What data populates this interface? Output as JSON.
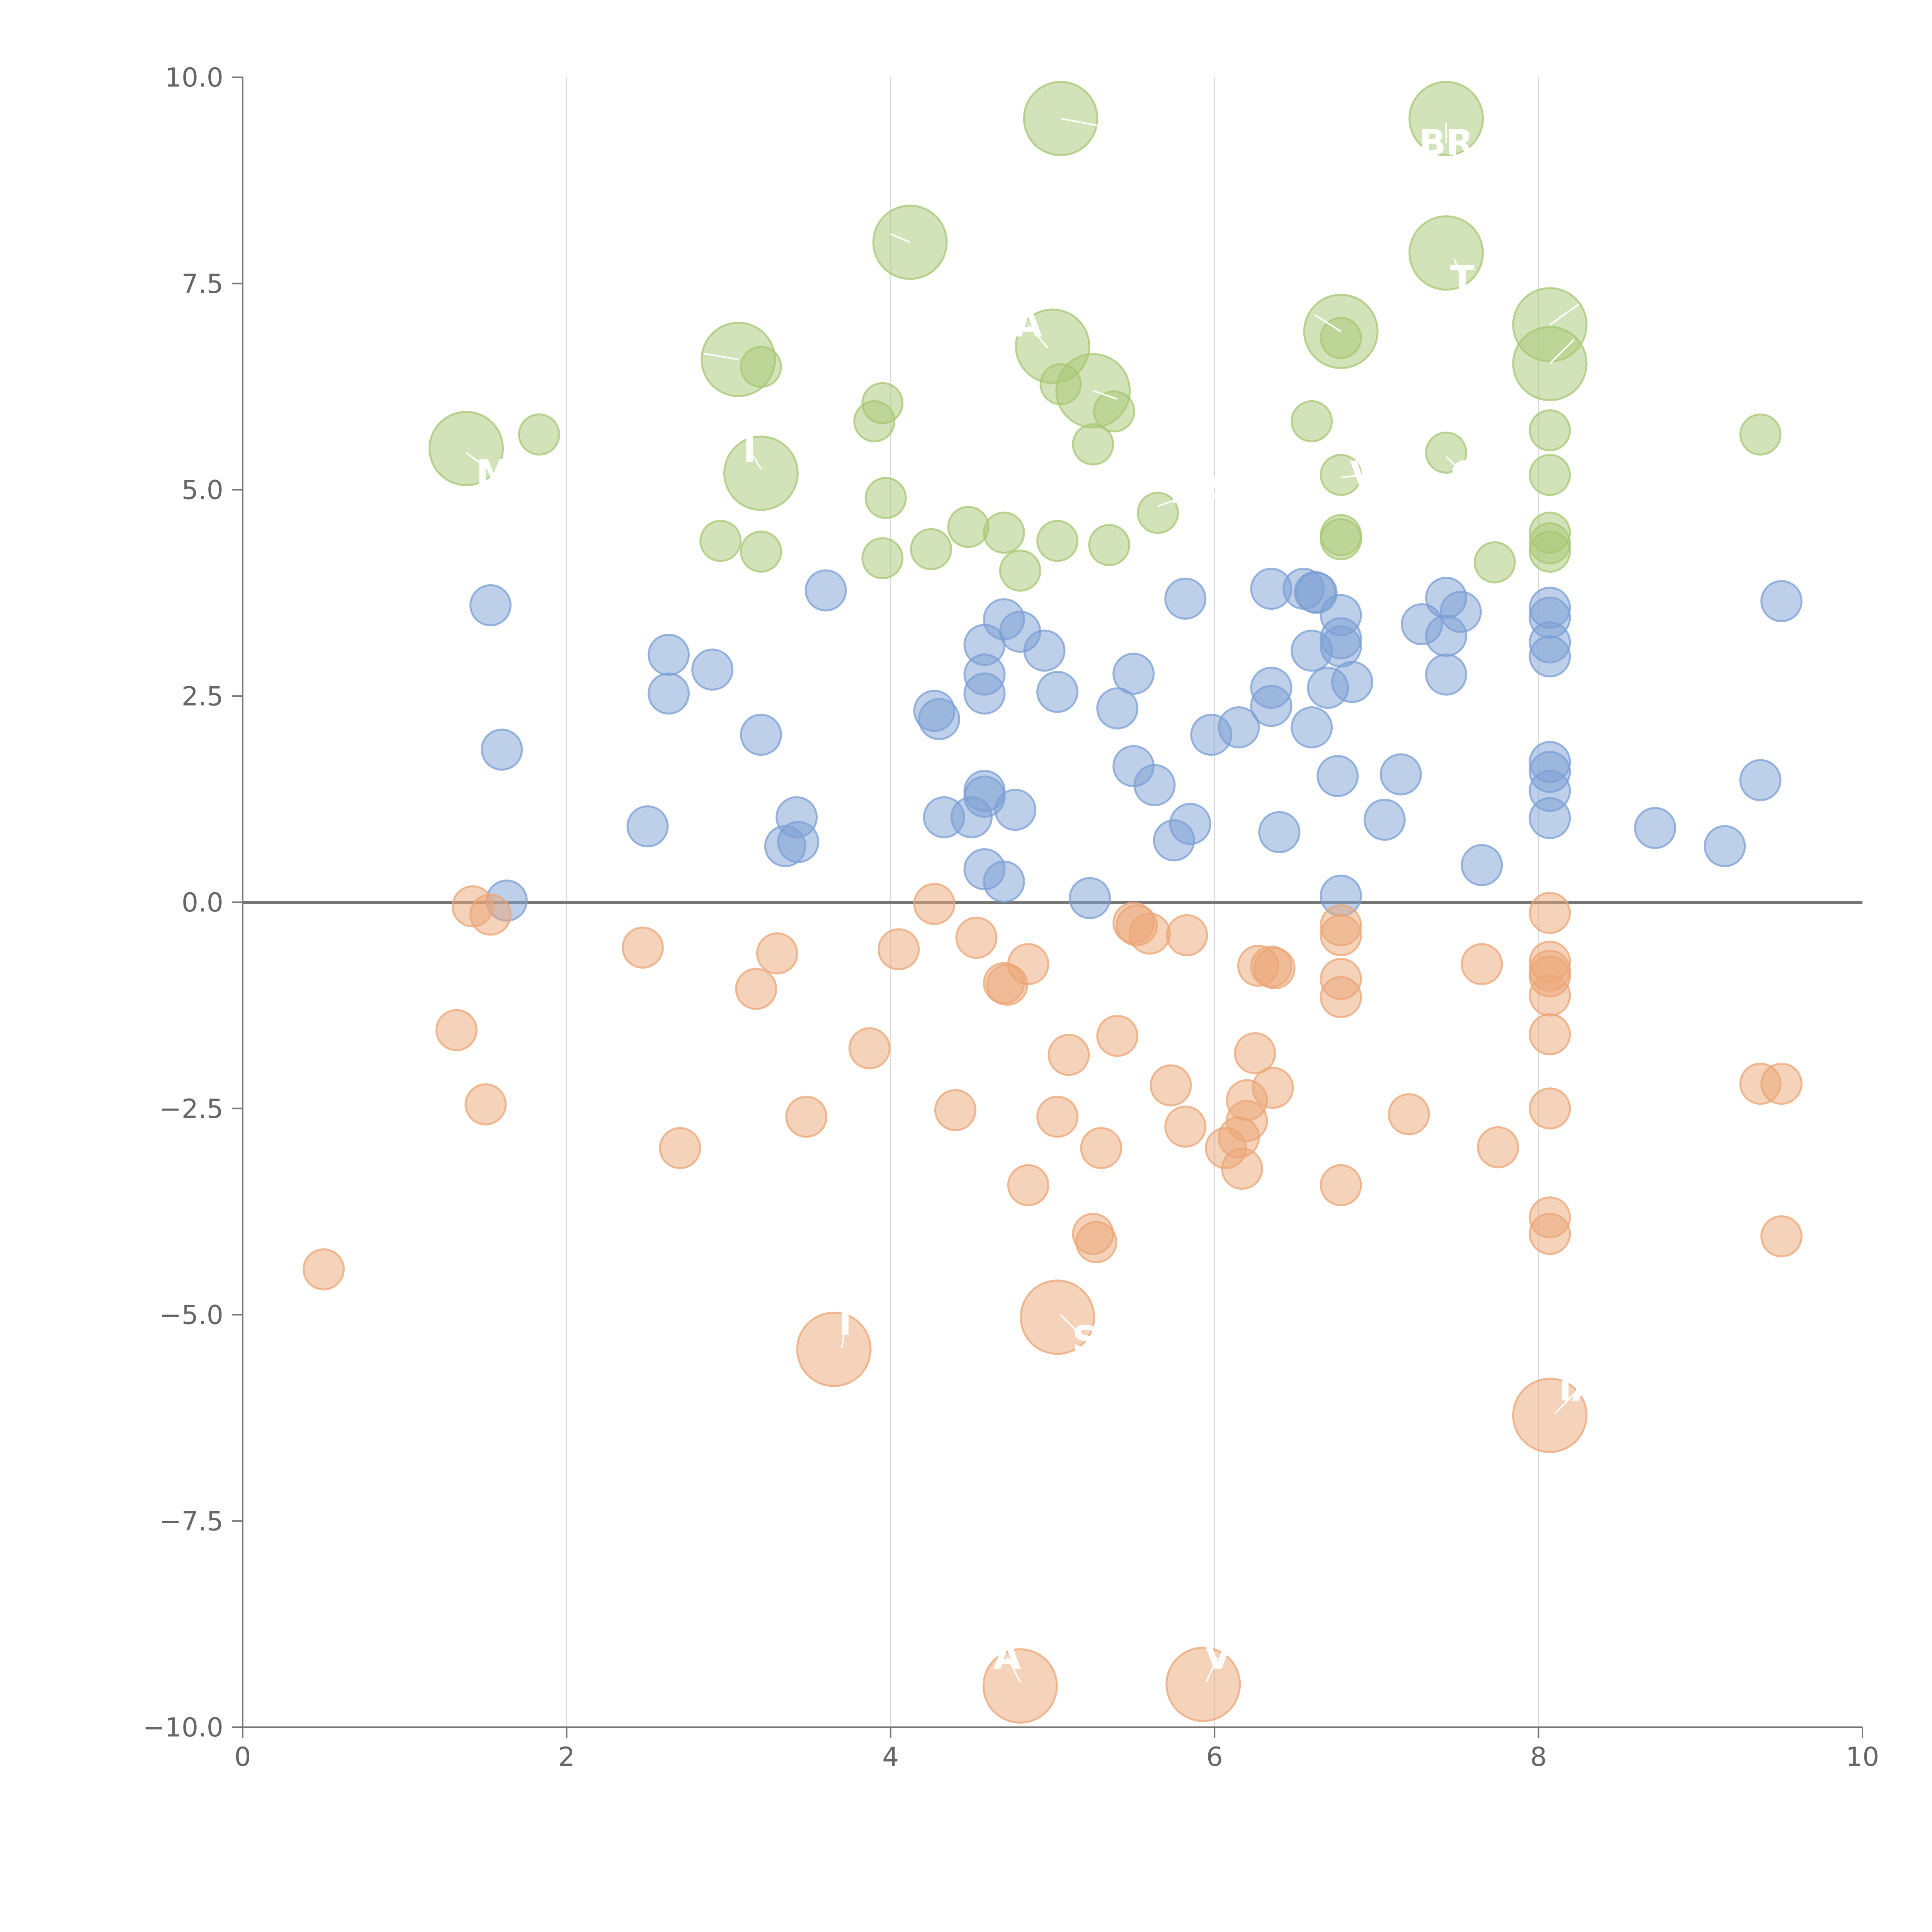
{
  "chart_data": {
    "type": "scatter",
    "title": "",
    "xlabel": "",
    "ylabel": "",
    "xlim": [
      0,
      10
    ],
    "ylim": [
      -10,
      10
    ],
    "x_ticks": [
      "0",
      "2",
      "4",
      "6",
      "8",
      "10"
    ],
    "y_ticks": [
      "10.0",
      "7.5",
      "5.0",
      "2.5",
      "0.0",
      "−2.5",
      "−5.0",
      "−7.5",
      "−10.0"
    ],
    "x_gridlines": [
      2,
      4,
      6,
      8
    ],
    "zero_line": 0,
    "series": [
      {
        "name": "green",
        "color": "#a7c773",
        "points": [
          [
            5.05,
            9.5,
            2
          ],
          [
            7.43,
            9.5,
            2
          ],
          [
            4.12,
            8.0,
            2
          ],
          [
            7.43,
            7.87,
            2
          ],
          [
            8.07,
            7.0,
            2
          ],
          [
            6.78,
            6.92,
            2
          ],
          [
            5.0,
            6.74,
            2
          ],
          [
            3.06,
            6.58,
            2
          ],
          [
            8.07,
            6.53,
            2
          ],
          [
            5.25,
            6.2,
            2
          ],
          [
            1.38,
            5.5,
            2
          ],
          [
            3.2,
            5.2,
            2
          ],
          [
            6.78,
            6.84,
            1
          ],
          [
            3.2,
            6.49,
            1
          ],
          [
            5.05,
            6.28,
            1
          ],
          [
            3.95,
            6.05,
            1
          ],
          [
            5.38,
            5.95,
            1
          ],
          [
            3.9,
            5.83,
            1
          ],
          [
            6.6,
            5.83,
            1
          ],
          [
            8.07,
            5.72,
            1
          ],
          [
            1.83,
            5.67,
            1
          ],
          [
            9.37,
            5.67,
            1
          ],
          [
            5.25,
            5.55,
            1
          ],
          [
            7.43,
            5.45,
            1
          ],
          [
            8.07,
            5.18,
            1
          ],
          [
            6.78,
            5.18,
            1
          ],
          [
            3.97,
            4.9,
            1
          ],
          [
            5.65,
            4.72,
            1
          ],
          [
            4.48,
            4.55,
            1
          ],
          [
            4.7,
            4.48,
            1
          ],
          [
            8.07,
            4.48,
            1
          ],
          [
            6.78,
            4.45,
            1
          ],
          [
            6.78,
            4.4,
            1
          ],
          [
            2.95,
            4.38,
            1
          ],
          [
            5.03,
            4.38,
            1
          ],
          [
            8.07,
            4.35,
            1
          ],
          [
            5.35,
            4.33,
            1
          ],
          [
            4.25,
            4.28,
            1
          ],
          [
            8.07,
            4.25,
            1
          ],
          [
            3.2,
            4.25,
            1
          ],
          [
            3.95,
            4.17,
            1
          ],
          [
            7.73,
            4.12,
            1
          ],
          [
            4.8,
            4.02,
            1
          ]
        ]
      },
      {
        "name": "blue",
        "color": "#7b9fd4",
        "points": [
          [
            3.6,
            3.78,
            1
          ],
          [
            6.35,
            3.8,
            1
          ],
          [
            6.55,
            3.8,
            1
          ],
          [
            6.62,
            3.76,
            1
          ],
          [
            6.63,
            3.75,
            1
          ],
          [
            5.82,
            3.68,
            1
          ],
          [
            7.43,
            3.69,
            1
          ],
          [
            9.5,
            3.65,
            1
          ],
          [
            1.53,
            3.6,
            1
          ],
          [
            8.07,
            3.57,
            1
          ],
          [
            7.52,
            3.52,
            1
          ],
          [
            6.78,
            3.48,
            1
          ],
          [
            8.07,
            3.45,
            1
          ],
          [
            4.7,
            3.43,
            1
          ],
          [
            7.28,
            3.37,
            1
          ],
          [
            4.8,
            3.28,
            1
          ],
          [
            7.43,
            3.23,
            1
          ],
          [
            6.78,
            3.2,
            1
          ],
          [
            8.07,
            3.15,
            1
          ],
          [
            4.58,
            3.12,
            1
          ],
          [
            6.78,
            3.1,
            1
          ],
          [
            4.95,
            3.05,
            1
          ],
          [
            6.6,
            3.05,
            1
          ],
          [
            2.63,
            3.0,
            1
          ],
          [
            8.07,
            2.98,
            1
          ],
          [
            2.9,
            2.82,
            1
          ],
          [
            5.5,
            2.77,
            1
          ],
          [
            4.58,
            2.76,
            1
          ],
          [
            7.43,
            2.76,
            1
          ],
          [
            6.85,
            2.67,
            1
          ],
          [
            6.7,
            2.6,
            1
          ],
          [
            6.35,
            2.6,
            1
          ],
          [
            4.58,
            2.53,
            1
          ],
          [
            5.03,
            2.55,
            1
          ],
          [
            2.63,
            2.53,
            1
          ],
          [
            6.35,
            2.38,
            1
          ],
          [
            5.4,
            2.35,
            1
          ],
          [
            4.27,
            2.32,
            1
          ],
          [
            4.3,
            2.22,
            1
          ],
          [
            6.15,
            2.12,
            1
          ],
          [
            6.6,
            2.12,
            1
          ],
          [
            5.98,
            2.03,
            1
          ],
          [
            3.2,
            2.03,
            1
          ],
          [
            1.6,
            1.85,
            1
          ],
          [
            8.07,
            1.7,
            1
          ],
          [
            5.5,
            1.65,
            1
          ],
          [
            8.07,
            1.58,
            1
          ],
          [
            7.15,
            1.55,
            1
          ],
          [
            6.76,
            1.53,
            1
          ],
          [
            9.37,
            1.48,
            1
          ],
          [
            5.63,
            1.42,
            1
          ],
          [
            8.07,
            1.35,
            1
          ],
          [
            4.58,
            1.35,
            1
          ],
          [
            4.58,
            1.28,
            1
          ],
          [
            4.77,
            1.12,
            1
          ],
          [
            3.42,
            1.03,
            1
          ],
          [
            4.33,
            1.03,
            1
          ],
          [
            4.5,
            1.03,
            1
          ],
          [
            8.07,
            1.02,
            1
          ],
          [
            7.05,
            1.0,
            1
          ],
          [
            5.85,
            0.95,
            1
          ],
          [
            2.5,
            0.92,
            1
          ],
          [
            8.72,
            0.9,
            1
          ],
          [
            6.4,
            0.85,
            1
          ],
          [
            5.75,
            0.75,
            1
          ],
          [
            3.43,
            0.73,
            1
          ],
          [
            3.35,
            0.68,
            1
          ],
          [
            9.15,
            0.68,
            1
          ],
          [
            7.65,
            0.45,
            1
          ],
          [
            4.58,
            0.4,
            1
          ],
          [
            4.7,
            0.25,
            1
          ],
          [
            6.78,
            0.08,
            1
          ],
          [
            5.23,
            0.05,
            1
          ],
          [
            1.63,
            0.02,
            1
          ]
        ]
      },
      {
        "name": "orange",
        "color": "#eba575",
        "points": [
          [
            5.03,
            -5.03,
            2
          ],
          [
            3.65,
            -5.42,
            2
          ],
          [
            8.07,
            -6.22,
            2
          ],
          [
            4.8,
            -9.5,
            2
          ],
          [
            5.93,
            -9.48,
            2
          ],
          [
            4.27,
            -0.02,
            1
          ],
          [
            1.42,
            -0.05,
            1
          ],
          [
            8.07,
            -0.13,
            1
          ],
          [
            1.53,
            -0.15,
            1
          ],
          [
            5.5,
            -0.25,
            1
          ],
          [
            5.52,
            -0.28,
            1
          ],
          [
            6.78,
            -0.28,
            1
          ],
          [
            5.6,
            -0.38,
            1
          ],
          [
            5.83,
            -0.4,
            1
          ],
          [
            6.78,
            -0.4,
            1
          ],
          [
            4.53,
            -0.43,
            1
          ],
          [
            2.47,
            -0.55,
            1
          ],
          [
            4.05,
            -0.57,
            1
          ],
          [
            3.3,
            -0.62,
            1
          ],
          [
            8.07,
            -0.72,
            1
          ],
          [
            7.65,
            -0.75,
            1
          ],
          [
            6.27,
            -0.77,
            1
          ],
          [
            4.85,
            -0.75,
            1
          ],
          [
            6.35,
            -0.78,
            1
          ],
          [
            6.37,
            -0.8,
            1
          ],
          [
            8.07,
            -0.83,
            1
          ],
          [
            8.07,
            -0.9,
            1
          ],
          [
            6.78,
            -0.93,
            1
          ],
          [
            4.7,
            -0.98,
            1
          ],
          [
            4.72,
            -1.0,
            1
          ],
          [
            3.17,
            -1.05,
            1
          ],
          [
            8.07,
            -1.13,
            1
          ],
          [
            6.78,
            -1.15,
            1
          ],
          [
            1.32,
            -1.55,
            1
          ],
          [
            5.4,
            -1.62,
            1
          ],
          [
            8.07,
            -1.6,
            1
          ],
          [
            3.87,
            -1.77,
            1
          ],
          [
            6.25,
            -1.83,
            1
          ],
          [
            5.1,
            -1.85,
            1
          ],
          [
            5.73,
            -2.22,
            1
          ],
          [
            6.36,
            -2.25,
            1
          ],
          [
            9.37,
            -2.2,
            1
          ],
          [
            9.5,
            -2.2,
            1
          ],
          [
            6.2,
            -2.4,
            1
          ],
          [
            1.5,
            -2.45,
            1
          ],
          [
            8.07,
            -2.5,
            1
          ],
          [
            4.4,
            -2.52,
            1
          ],
          [
            7.2,
            -2.57,
            1
          ],
          [
            3.48,
            -2.6,
            1
          ],
          [
            5.03,
            -2.6,
            1
          ],
          [
            6.2,
            -2.65,
            1
          ],
          [
            5.82,
            -2.72,
            1
          ],
          [
            6.15,
            -2.85,
            1
          ],
          [
            2.7,
            -2.98,
            1
          ],
          [
            5.3,
            -2.98,
            1
          ],
          [
            7.75,
            -2.97,
            1
          ],
          [
            6.07,
            -2.98,
            1
          ],
          [
            6.17,
            -3.23,
            1
          ],
          [
            4.85,
            -3.43,
            1
          ],
          [
            6.78,
            -3.43,
            1
          ],
          [
            8.07,
            -3.82,
            1
          ],
          [
            5.25,
            -4.02,
            1
          ],
          [
            8.07,
            -4.02,
            1
          ],
          [
            5.27,
            -4.12,
            1
          ],
          [
            9.5,
            -4.05,
            1
          ],
          [
            0.5,
            -4.45,
            1
          ]
        ]
      }
    ],
    "annotations": [
      {
        "text": "BR",
        "x": 7.43,
        "y": 9.45,
        "lx": 7.43,
        "ly": 9.2
      },
      {
        "text": "T",
        "x": 7.48,
        "y": 7.8,
        "lx": 7.53,
        "ly": 7.55
      },
      {
        "text": "A",
        "x": 4.97,
        "y": 6.72,
        "lx": 4.85,
        "ly": 7.0
      },
      {
        "text": "M",
        "x": 1.38,
        "y": 5.45,
        "lx": 1.55,
        "ly": 5.2
      },
      {
        "text": "V",
        "x": 6.78,
        "y": 5.15,
        "lx": 6.92,
        "ly": 5.18
      },
      {
        "text": "O",
        "x": 7.43,
        "y": 5.4,
        "lx": 7.55,
        "ly": 5.18
      },
      {
        "text": "DA",
        "x": 5.65,
        "y": 4.8,
        "lx": 5.9,
        "ly": 4.98
      },
      {
        "text": "I",
        "x": 3.2,
        "y": 5.25,
        "lx": 3.13,
        "ly": 5.48
      },
      {
        "text": "I",
        "x": 3.7,
        "y": -5.4,
        "lx": 3.72,
        "ly": -5.1
      },
      {
        "text": "S",
        "x": 5.05,
        "y": -5.0,
        "lx": 5.2,
        "ly": -5.3
      },
      {
        "text": "IA",
        "x": 8.1,
        "y": -6.2,
        "lx": 8.25,
        "ly": -5.9
      },
      {
        "text": "A",
        "x": 4.8,
        "y": -9.45,
        "lx": 4.72,
        "ly": -9.15
      },
      {
        "text": "V",
        "x": 5.95,
        "y": -9.45,
        "lx": 6.02,
        "ly": -9.15
      }
    ],
    "leader_lines": [
      {
        "x": 5.05,
        "y": 9.5,
        "lx": 5.32,
        "ly": 9.4
      },
      {
        "x": 4.12,
        "y": 8.0,
        "lx": 4.0,
        "ly": 8.1
      },
      {
        "x": 8.07,
        "y": 7.0,
        "lx": 8.25,
        "ly": 7.25
      },
      {
        "x": 8.07,
        "y": 6.53,
        "lx": 8.22,
        "ly": 6.82
      },
      {
        "x": 3.06,
        "y": 6.58,
        "lx": 2.85,
        "ly": 6.65
      },
      {
        "x": 5.25,
        "y": 6.2,
        "lx": 5.4,
        "ly": 6.1
      },
      {
        "x": 6.78,
        "y": 6.92,
        "lx": 6.62,
        "ly": 7.12
      }
    ]
  }
}
